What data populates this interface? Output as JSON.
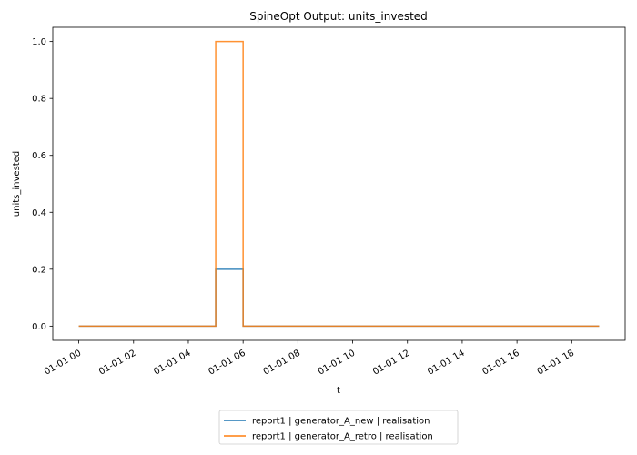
{
  "chart_data": {
    "type": "line",
    "step": "post",
    "title": "SpineOpt Output: units_invested",
    "xlabel": "t",
    "ylabel": "units_invested",
    "x_unit": "hour",
    "x": [
      0,
      1,
      2,
      3,
      4,
      5,
      6,
      7,
      8,
      9,
      10,
      11,
      12,
      13,
      14,
      15,
      16,
      17,
      18,
      19
    ],
    "xlim": [
      -0.95,
      19.95
    ],
    "ylim": [
      -0.05,
      1.05
    ],
    "x_ticks": [
      0,
      2,
      4,
      6,
      8,
      10,
      12,
      14,
      16,
      18
    ],
    "x_tick_labels": [
      "01-01 00",
      "01-01 02",
      "01-01 04",
      "01-01 06",
      "01-01 08",
      "01-01 10",
      "01-01 12",
      "01-01 14",
      "01-01 16",
      "01-01 18"
    ],
    "y_ticks": [
      0.0,
      0.2,
      0.4,
      0.6,
      0.8,
      1.0
    ],
    "y_tick_labels": [
      "0.0",
      "0.2",
      "0.4",
      "0.6",
      "0.8",
      "1.0"
    ],
    "grid": false,
    "legend_position": "bottom-center",
    "series": [
      {
        "name": "report1 | generator_A_new | realisation",
        "color": "#1f77b4",
        "values": [
          0,
          0,
          0,
          0,
          0,
          0.2,
          0,
          0,
          0,
          0,
          0,
          0,
          0,
          0,
          0,
          0,
          0,
          0,
          0,
          0
        ]
      },
      {
        "name": "report1 | generator_A_retro | realisation",
        "color": "#ff7f0e",
        "values": [
          0,
          0,
          0,
          0,
          0,
          1.0,
          0,
          0,
          0,
          0,
          0,
          0,
          0,
          0,
          0,
          0,
          0,
          0,
          0,
          0
        ]
      }
    ]
  }
}
